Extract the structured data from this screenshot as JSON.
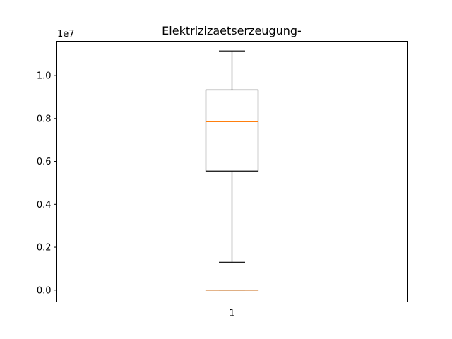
{
  "chart_data": {
    "type": "box",
    "title": "Elektrizizaetserzeugung-",
    "xlabel": "",
    "ylabel": "",
    "y_offset_label": "1e7",
    "categories": [
      "1"
    ],
    "ylim": [
      -0.055,
      1.16
    ],
    "yticks": [
      0.0,
      0.2,
      0.4,
      0.6,
      0.8,
      1.0
    ],
    "ytick_labels": [
      "0.0",
      "0.2",
      "0.4",
      "0.6",
      "0.8",
      "1.0"
    ],
    "grid": false,
    "boxes": [
      {
        "category": "1",
        "whisker_low": 0.13,
        "q1": 0.555,
        "median": 0.785,
        "q3": 0.933,
        "whisker_high": 1.115,
        "median_color": "#ff7f0e",
        "box_color": "#000000"
      },
      {
        "category": "1",
        "whisker_low": 0.0,
        "q1": 0.0,
        "median": 0.0,
        "q3": 0.0,
        "whisker_high": 0.0,
        "median_color": "#ff7f0e",
        "box_color": "#000000"
      }
    ]
  }
}
